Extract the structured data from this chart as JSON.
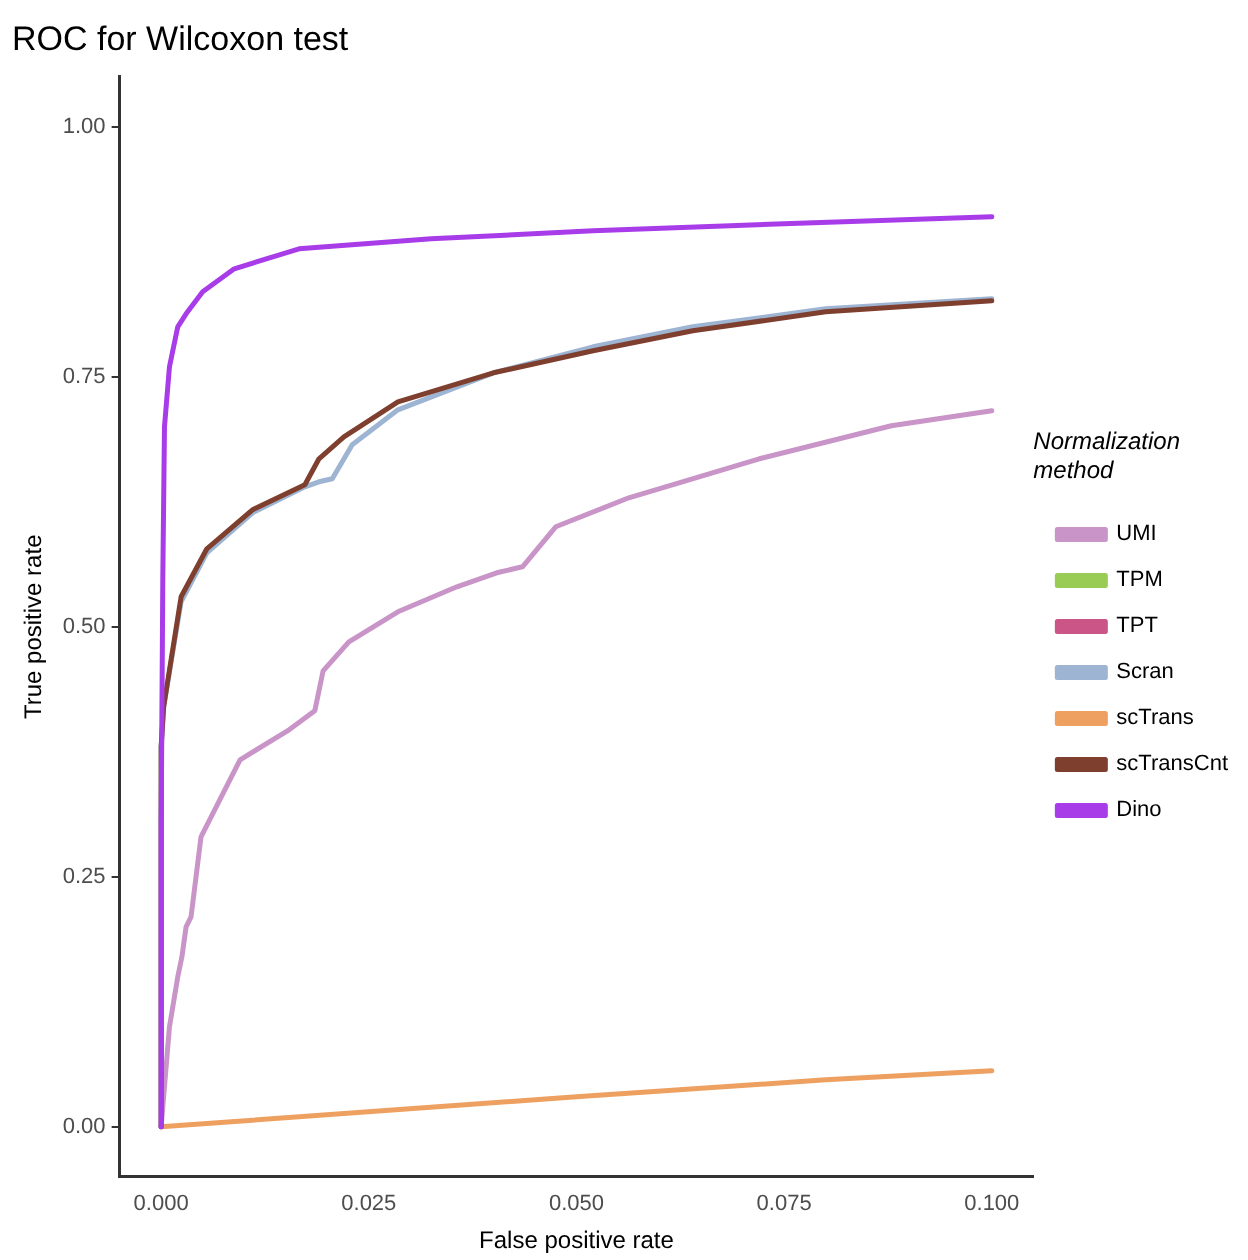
{
  "chart_data": {
    "type": "line",
    "title": "ROC for Wilcoxon test",
    "xlabel": "False positive rate",
    "ylabel": "True positive rate",
    "legend_title": "Normalization method",
    "xlim": [
      -0.005,
      0.105
    ],
    "xticks": [
      {
        "value": 0,
        "label": "0.000"
      },
      {
        "value": 0.025,
        "label": "0.025"
      },
      {
        "value": 0.05,
        "label": "0.050"
      },
      {
        "value": 0.075,
        "label": "0.075"
      },
      {
        "value": 0.1,
        "label": "0.100"
      }
    ],
    "ylim": [
      -0.05,
      1.05
    ],
    "yticks": [
      {
        "value": 0,
        "label": "0.00"
      },
      {
        "value": 0.25,
        "label": "0.25"
      },
      {
        "value": 0.5,
        "label": "0.50"
      },
      {
        "value": 0.75,
        "label": "0.75"
      },
      {
        "value": 1,
        "label": "1.00"
      }
    ],
    "grid": false,
    "legend": "right",
    "marker": "none",
    "line_style": "solid",
    "series": [
      {
        "name": "UMI",
        "color": "#c994c7",
        "x": [
          0,
          0.0005,
          0.001,
          0.002,
          0.0025,
          0.003,
          0.0036,
          0.0048,
          0.0095,
          0.0154,
          0.0185,
          0.0195,
          0.0226,
          0.0285,
          0.0356,
          0.0404,
          0.0435,
          0.0475,
          0.0563,
          0.072,
          0.0879,
          0.1
        ],
        "values": [
          0,
          0.05,
          0.1,
          0.15,
          0.17,
          0.2,
          0.21,
          0.29,
          0.367,
          0.397,
          0.416,
          0.456,
          0.485,
          0.515,
          0.54,
          0.554,
          0.56,
          0.6,
          0.629,
          0.668,
          0.701,
          0.716
        ]
      },
      {
        "name": "TPM",
        "color": "#99cc55"
      },
      {
        "name": "TPT",
        "color": "#cc5588"
      },
      {
        "name": "Scran",
        "color": "#9db4d2",
        "x": [
          0,
          0,
          0.0003,
          0.0024,
          0.0055,
          0.011,
          0.0173,
          0.019,
          0.0206,
          0.023,
          0.0285,
          0.04,
          0.052,
          0.064,
          0.08,
          0.1
        ],
        "values": [
          0,
          0.38,
          0.42,
          0.525,
          0.574,
          0.614,
          0.64,
          0.645,
          0.648,
          0.682,
          0.717,
          0.754,
          0.78,
          0.8,
          0.818,
          0.828
        ]
      },
      {
        "name": "scTrans",
        "color": "#eea060",
        "x": [
          0,
          0.05,
          0.08,
          0.1
        ],
        "values": [
          0,
          0.03,
          0.047,
          0.056
        ]
      },
      {
        "name": "scTransCnt",
        "color": "#7f3f2f",
        "x": [
          0,
          0,
          0.0003,
          0.0024,
          0.0055,
          0.011,
          0.0173,
          0.019,
          0.022,
          0.0285,
          0.04,
          0.052,
          0.064,
          0.08,
          0.1
        ],
        "values": [
          0,
          0.38,
          0.42,
          0.53,
          0.578,
          0.617,
          0.642,
          0.668,
          0.69,
          0.725,
          0.754,
          0.776,
          0.796,
          0.815,
          0.826
        ]
      },
      {
        "name": "Dino",
        "color": "#a83ce8",
        "x": [
          0,
          0,
          0.0002,
          0.0004,
          0.001,
          0.002,
          0.003,
          0.005,
          0.0088,
          0.0166,
          0.0325,
          0.052,
          0.075,
          0.1
        ],
        "values": [
          0,
          0.3,
          0.55,
          0.7,
          0.76,
          0.8,
          0.813,
          0.835,
          0.858,
          0.878,
          0.888,
          0.896,
          0.903,
          0.91
        ]
      }
    ]
  }
}
